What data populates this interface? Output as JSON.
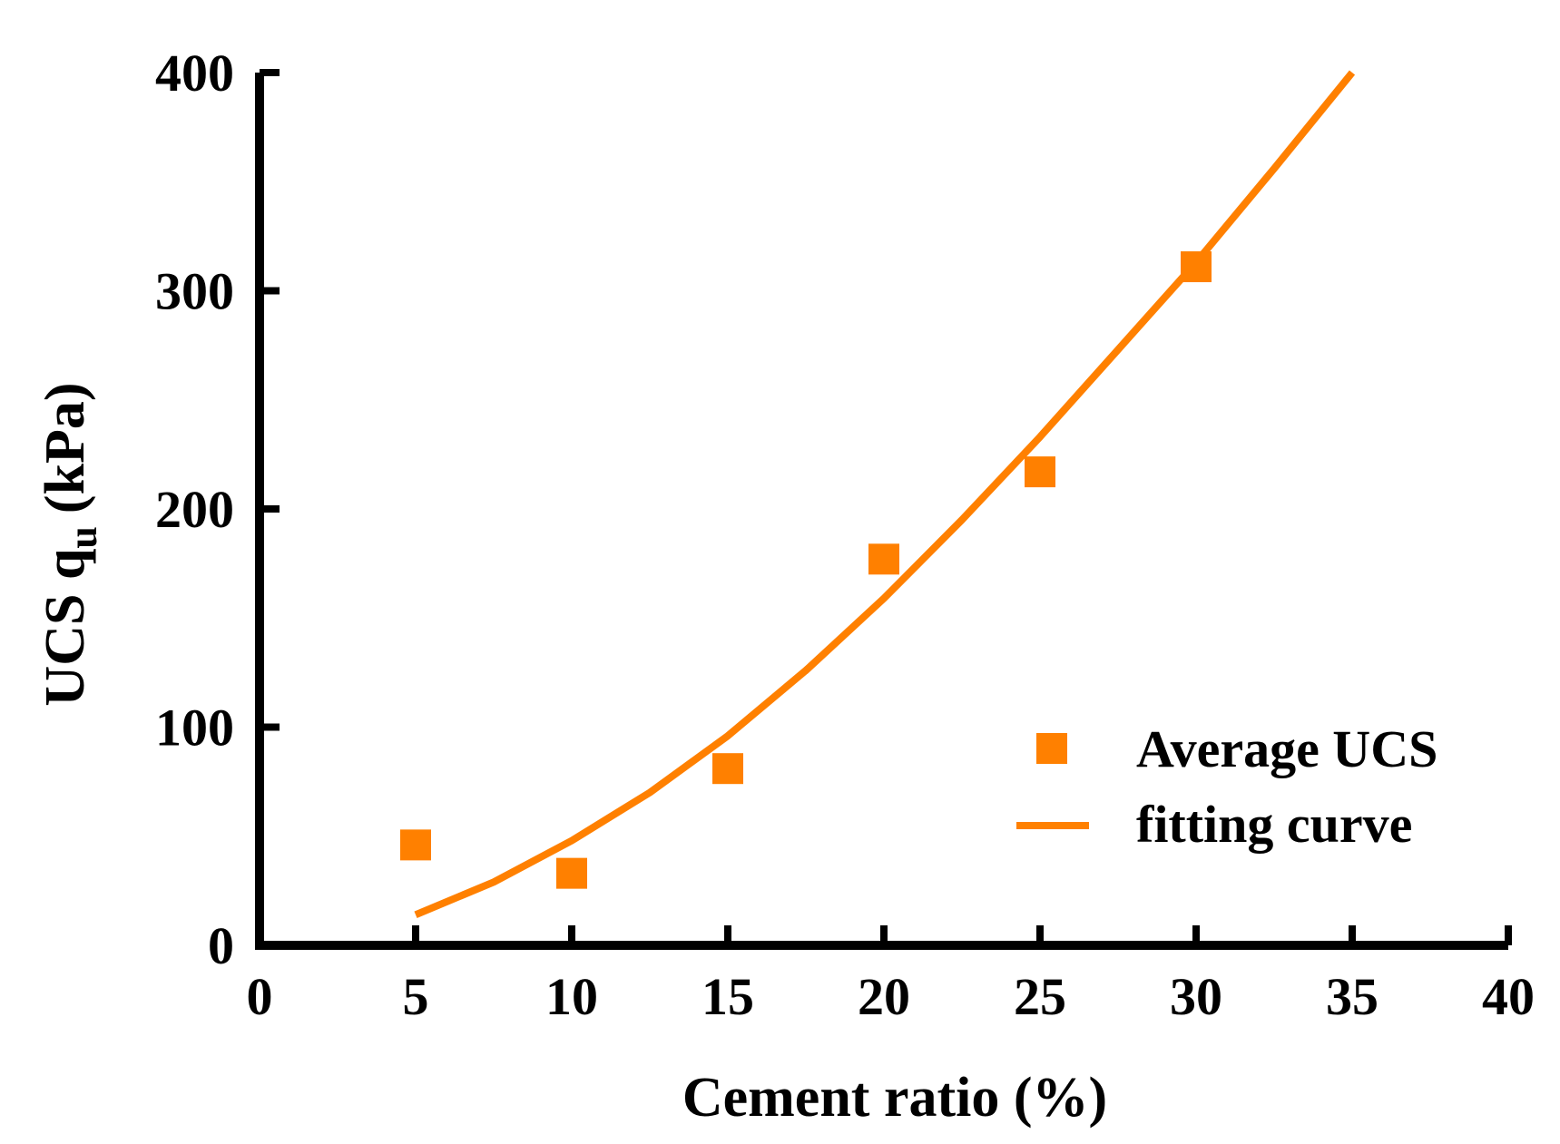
{
  "chart_data": {
    "type": "scatter",
    "title": "",
    "xlabel": "Cement ratio (%)",
    "ylabel_main": "UCS q",
    "ylabel_sub": "u",
    "ylabel_unit": "(kPa)",
    "xlim": [
      0,
      40
    ],
    "ylim": [
      0,
      400
    ],
    "xticks": [
      0,
      5,
      10,
      15,
      20,
      25,
      30,
      35,
      40
    ],
    "yticks": [
      0,
      100,
      200,
      300,
      400
    ],
    "grid": false,
    "legend_position": "right-center",
    "series": [
      {
        "name": "Average UCS",
        "kind": "scatter",
        "marker": "square",
        "color": "#FF8000",
        "x": [
          5,
          10,
          15,
          20,
          25,
          30
        ],
        "y": [
          46,
          33,
          81,
          177,
          217,
          311
        ]
      },
      {
        "name": "fitting curve",
        "kind": "line",
        "color": "#FF8000",
        "x": [
          5,
          7.5,
          10,
          12.5,
          15,
          17.5,
          20,
          22.5,
          25,
          27.5,
          30,
          32.5,
          35
        ],
        "y": [
          14,
          29,
          48,
          70,
          96,
          126,
          159,
          195,
          233,
          273,
          313,
          356,
          400
        ]
      }
    ]
  }
}
